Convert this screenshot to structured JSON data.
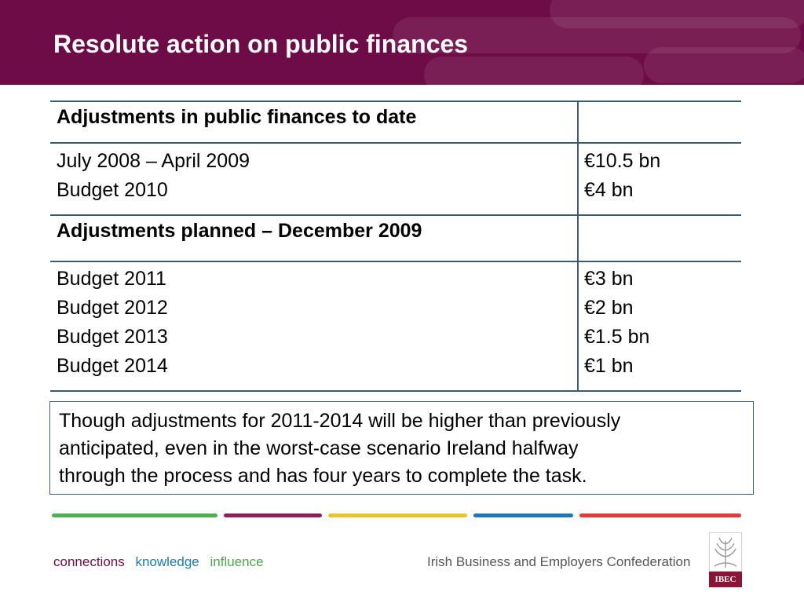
{
  "slide": {
    "title": "Resolute action on public finances"
  },
  "table": {
    "rows": [
      {
        "label_lines": [
          "Adjustments in public finances to date"
        ],
        "value_lines": []
      },
      {
        "label_lines": [
          "July 2008 – April 2009",
          "Budget 2010"
        ],
        "value_lines": [
          "€10.5 bn",
          "€4 bn"
        ]
      },
      {
        "label_lines": [
          "Adjustments planned – December 2009"
        ],
        "value_lines": []
      },
      {
        "label_lines": [
          "Budget 2011",
          "Budget 2012",
          "Budget 2013",
          "Budget 2014"
        ],
        "value_lines": [
          "€3 bn",
          "€2 bn",
          "€1.5 bn",
          "€1 bn"
        ]
      }
    ]
  },
  "note": {
    "lines": [
      "Though adjustments for 2011-2014 will be higher than previously",
      "anticipated, even in the worst-case scenario Ireland halfway",
      "through the process and has four years to complete the task."
    ]
  },
  "footer": {
    "tagline": [
      {
        "text": "connections",
        "color": "#6e0c47"
      },
      {
        "text": "knowledge",
        "color": "#1a7ab8"
      },
      {
        "text": "influence",
        "color": "#4aa84a"
      }
    ],
    "organization": "Irish Business and Employers Confederation",
    "logo_text": "IBEC",
    "stripe_colors": [
      "#4caf50",
      "#8c1f5e",
      "#e3c72a",
      "#1e78b8",
      "#e23a3a"
    ]
  },
  "colors": {
    "header_bg": "#6e0c47",
    "table_border": "#3c5a73"
  }
}
